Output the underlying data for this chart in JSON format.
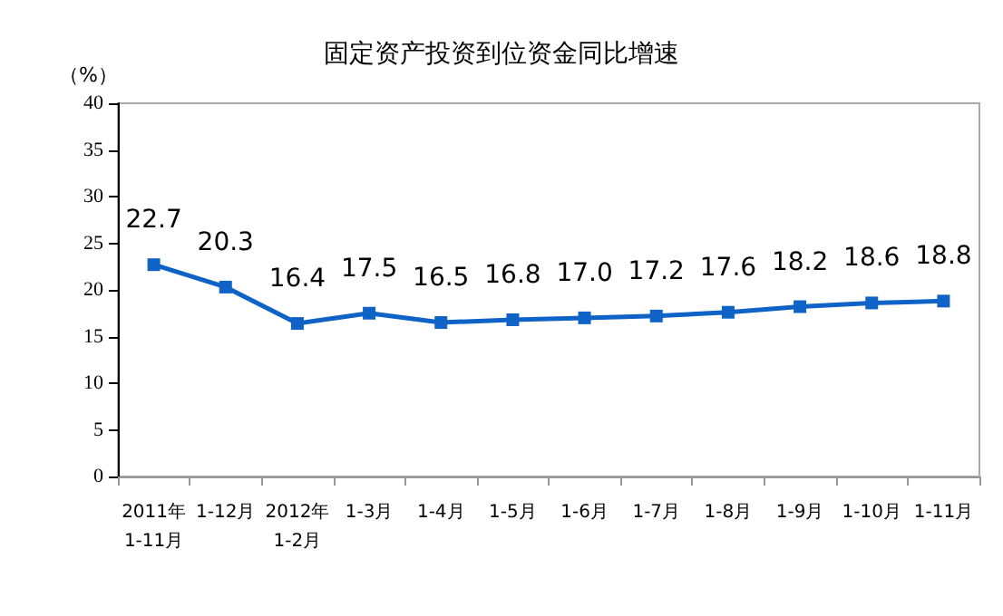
{
  "chart_data": {
    "type": "line",
    "title": "固定资产投资到位资金同比增速",
    "ylabel": "（%）",
    "categories": [
      "2011年\n1-11月",
      "1-12月",
      "2012年\n1-2月",
      "1-3月",
      "1-4月",
      "1-5月",
      "1-6月",
      "1-7月",
      "1-8月",
      "1-9月",
      "1-10月",
      "1-11月"
    ],
    "series": [
      {
        "color": "#0f62c6",
        "values": [
          22.7,
          20.3,
          16.4,
          17.5,
          16.5,
          16.8,
          17.0,
          17.2,
          17.6,
          18.2,
          18.6,
          18.8
        ]
      }
    ],
    "value_labels": [
      "22.7",
      "20.3",
      "16.4",
      "17.5",
      "16.5",
      "16.8",
      "17.0",
      "17.2",
      "17.6",
      "18.2",
      "18.6",
      "18.8"
    ],
    "ylim": [
      0,
      40
    ],
    "yticks": [
      0,
      5,
      10,
      15,
      20,
      25,
      30,
      35,
      40
    ],
    "grid": false,
    "marker": "square",
    "line_style": "solid"
  }
}
